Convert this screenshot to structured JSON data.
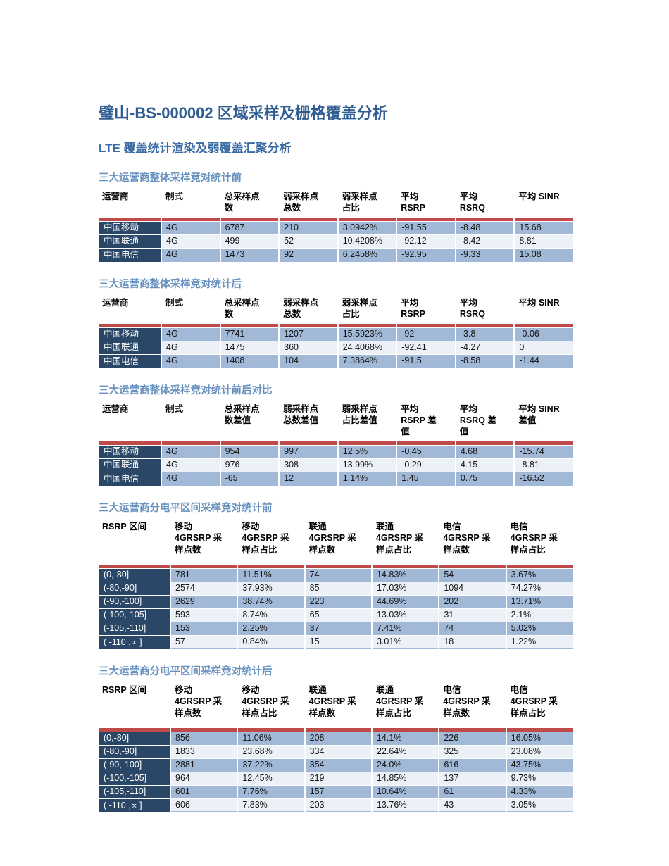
{
  "page": {
    "title": "璧山-BS-000002 区域采样及栅格覆盖分析",
    "subtitle": "LTE 覆盖统计渲染及弱覆盖汇聚分析"
  },
  "colors": {
    "title": "#315E92",
    "subtitle": "#3A6BA4",
    "section_heading": "#6791BF",
    "red_bar": "#BE4B48",
    "row_header_bg": "#2B4767",
    "row_medium_bg": "#A1B8D6",
    "row_light_bg": "#ECF1F8",
    "table_bottom_line": "#9FB9DA",
    "data_text": "#141414"
  },
  "tables": [
    {
      "section_title": "三大运营商整体采样竞对统计前",
      "columns": [
        "运营商",
        "制式",
        "总采样点\n数",
        "弱采样点\n总数",
        "弱采样点\n占比",
        "平均\nRSRP",
        "平均\nRSRQ",
        "平均 SINR"
      ],
      "rows": [
        [
          "中国移动",
          "4G",
          "6787",
          "210",
          "3.0942%",
          "-91.55",
          "-8.48",
          "15.68"
        ],
        [
          "中国联通",
          "4G",
          "499",
          "52",
          "10.4208%",
          "-92.12",
          "-8.42",
          "8.81"
        ],
        [
          "中国电信",
          "4G",
          "1473",
          "92",
          "6.2458%",
          "-92.95",
          "-9.33",
          "15.08"
        ]
      ]
    },
    {
      "section_title": "三大运营商整体采样竞对统计后",
      "columns": [
        "运营商",
        "制式",
        "总采样点\n数",
        "弱采样点\n总数",
        "弱采样点\n占比",
        "平均\nRSRP",
        "平均\nRSRQ",
        "平均 SINR"
      ],
      "rows": [
        [
          "中国移动",
          "4G",
          "7741",
          "1207",
          "15.5923%",
          "-92",
          "-3.8",
          "-0.06"
        ],
        [
          "中国联通",
          "4G",
          "1475",
          "360",
          "24.4068%",
          "-92.41",
          "-4.27",
          "0"
        ],
        [
          "中国电信",
          "4G",
          "1408",
          "104",
          "7.3864%",
          "-91.5",
          "-8.58",
          "-1.44"
        ]
      ]
    },
    {
      "section_title": "三大运营商整体采样竞对统计前后对比",
      "columns": [
        "运营商",
        "制式",
        "总采样点\n数差值",
        "弱采样点\n总数差值",
        "弱采样点\n占比差值",
        "平均\nRSRP 差\n值",
        "平均\nRSRQ 差\n值",
        "平均 SINR\n差值"
      ],
      "rows": [
        [
          "中国移动",
          "4G",
          "954",
          "997",
          "12.5%",
          "-0.45",
          "4.68",
          "-15.74"
        ],
        [
          "中国联通",
          "4G",
          "976",
          "308",
          "13.99%",
          "-0.29",
          "4.15",
          "-8.81"
        ],
        [
          "中国电信",
          "4G",
          "-65",
          "12",
          "1.14%",
          "1.45",
          "0.75",
          "-16.52"
        ]
      ]
    },
    {
      "section_title": "三大运营商分电平区间采样竞对统计前",
      "columns": [
        "RSRP 区间",
        "移动\n4GRSRP 采\n样点数",
        "移动\n4GRSRP 采\n样点占比",
        "联通\n4GRSRP 采\n样点数",
        "联通\n4GRSRP 采\n样点占比",
        "电信\n4GRSRP 采\n样点数",
        "电信\n4GRSRP 采\n样点占比"
      ],
      "rows": [
        [
          "(0,-80]",
          "781",
          "11.51%",
          "74",
          "14.83%",
          "54",
          "3.67%"
        ],
        [
          "(-80,-90]",
          "2574",
          "37.93%",
          "85",
          "17.03%",
          "1094",
          "74.27%"
        ],
        [
          "(-90,-100]",
          "2629",
          "38.74%",
          "223",
          "44.69%",
          "202",
          "13.71%"
        ],
        [
          "(-100,-105]",
          "593",
          "8.74%",
          "65",
          "13.03%",
          "31",
          "2.1%"
        ],
        [
          "(-105,-110]",
          "153",
          "2.25%",
          "37",
          "7.41%",
          "74",
          "5.02%"
        ],
        [
          "( -110 ,∝  ]",
          "57",
          "0.84%",
          "15",
          "3.01%",
          "18",
          "1.22%"
        ]
      ]
    },
    {
      "section_title": "三大运营商分电平区间采样竞对统计后",
      "columns": [
        "RSRP 区间",
        "移动\n4GRSRP 采\n样点数",
        "移动\n4GRSRP 采\n样点占比",
        "联通\n4GRSRP 采\n样点数",
        "联通\n4GRSRP 采\n样点占比",
        "电信\n4GRSRP 采\n样点数",
        "电信\n4GRSRP 采\n样点占比"
      ],
      "rows": [
        [
          "(0,-80]",
          "856",
          "11.06%",
          "208",
          "14.1%",
          "226",
          "16.05%"
        ],
        [
          "(-80,-90]",
          "1833",
          "23.68%",
          "334",
          "22.64%",
          "325",
          "23.08%"
        ],
        [
          "(-90,-100]",
          "2881",
          "37.22%",
          "354",
          "24.0%",
          "616",
          "43.75%"
        ],
        [
          "(-100,-105]",
          "964",
          "12.45%",
          "219",
          "14.85%",
          "137",
          "9.73%"
        ],
        [
          "(-105,-110]",
          "601",
          "7.76%",
          "157",
          "10.64%",
          "61",
          "4.33%"
        ],
        [
          "( -110 ,∝  ]",
          "606",
          "7.83%",
          "203",
          "13.76%",
          "43",
          "3.05%"
        ]
      ]
    }
  ]
}
